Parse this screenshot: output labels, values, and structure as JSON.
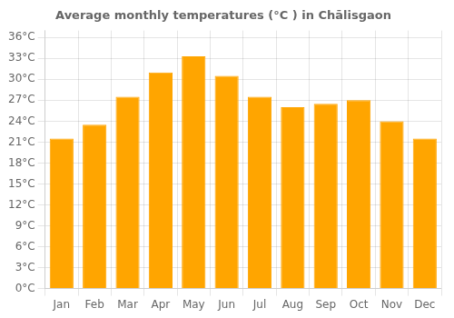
{
  "chart_data": {
    "type": "bar",
    "title": "Average monthly temperatures (°C ) in Chālisgaon",
    "categories": [
      "Jan",
      "Feb",
      "Mar",
      "Apr",
      "May",
      "Jun",
      "Jul",
      "Aug",
      "Sep",
      "Oct",
      "Nov",
      "Dec"
    ],
    "values": [
      21.5,
      23.5,
      27.5,
      31.0,
      33.3,
      30.5,
      27.5,
      26.0,
      26.5,
      27.0,
      24.0,
      21.5
    ],
    "color": "#FFA500",
    "ylim": [
      0,
      37
    ],
    "yticks": [
      {
        "value": 0,
        "label": "0°C"
      },
      {
        "value": 3,
        "label": "3°C"
      },
      {
        "value": 6,
        "label": "6°C"
      },
      {
        "value": 9,
        "label": "9°C"
      },
      {
        "value": 12,
        "label": "12°C"
      },
      {
        "value": 15,
        "label": "15°C"
      },
      {
        "value": 18,
        "label": "18°C"
      },
      {
        "value": 21,
        "label": "21°C"
      },
      {
        "value": 24,
        "label": "24°C"
      },
      {
        "value": 27,
        "label": "27°C"
      },
      {
        "value": 30,
        "label": "30°C"
      },
      {
        "value": 33,
        "label": "33°C"
      },
      {
        "value": 36,
        "label": "36°C"
      }
    ],
    "grid": true
  }
}
